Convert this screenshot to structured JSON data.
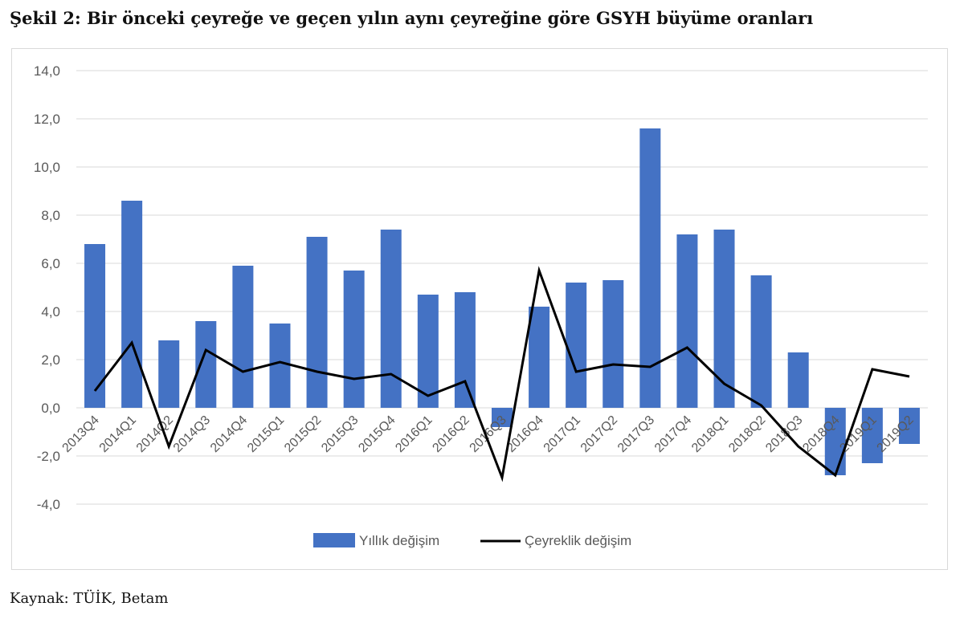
{
  "figure": {
    "title": "Şekil 2: Bir önceki çeyreğe ve geçen yılın aynı çeyreğine göre GSYH büyüme oranları",
    "source": "Kaynak: TÜİK, Betam"
  },
  "colors": {
    "bar": "#4472c4",
    "line": "#000000",
    "grid": "#d9d9d9",
    "axis_text": "#595959"
  },
  "chart_data": {
    "type": "bar",
    "title": "",
    "xlabel": "",
    "ylabel": "",
    "ylim": [
      -4,
      14
    ],
    "yticks": [
      "14,0",
      "12,0",
      "10,0",
      "8,0",
      "6,0",
      "4,0",
      "2,0",
      "0,0",
      "-2,0",
      "-4,0"
    ],
    "ytick_values": [
      14,
      12,
      10,
      8,
      6,
      4,
      2,
      0,
      -2,
      -4
    ],
    "grid": true,
    "legend_position": "bottom",
    "categories": [
      "2013Q4",
      "2014Q1",
      "2014Q2",
      "2014Q3",
      "2014Q4",
      "2015Q1",
      "2015Q2",
      "2015Q3",
      "2015Q4",
      "2016Q1",
      "2016Q2",
      "2016Q3",
      "2016Q4",
      "2017Q1",
      "2017Q2",
      "2017Q3",
      "2017Q4",
      "2018Q1",
      "2018Q2",
      "2018Q3",
      "2018Q4",
      "2019Q1",
      "2019Q2"
    ],
    "series": [
      {
        "name": "Yıllık değişim",
        "kind": "bar",
        "values": [
          6.8,
          8.6,
          2.8,
          3.6,
          5.9,
          3.5,
          7.1,
          5.7,
          7.4,
          4.7,
          4.8,
          -0.8,
          4.2,
          5.2,
          5.3,
          11.6,
          7.2,
          7.4,
          5.5,
          2.3,
          -2.8,
          -2.3,
          -1.5
        ]
      },
      {
        "name": "Çeyreklik değişim",
        "kind": "line",
        "values": [
          0.7,
          2.7,
          -1.6,
          2.4,
          1.5,
          1.9,
          1.5,
          1.2,
          1.4,
          0.5,
          1.1,
          -2.9,
          5.7,
          1.5,
          1.8,
          1.7,
          2.5,
          1.0,
          0.1,
          -1.6,
          -2.8,
          1.6,
          1.3
        ]
      }
    ]
  }
}
